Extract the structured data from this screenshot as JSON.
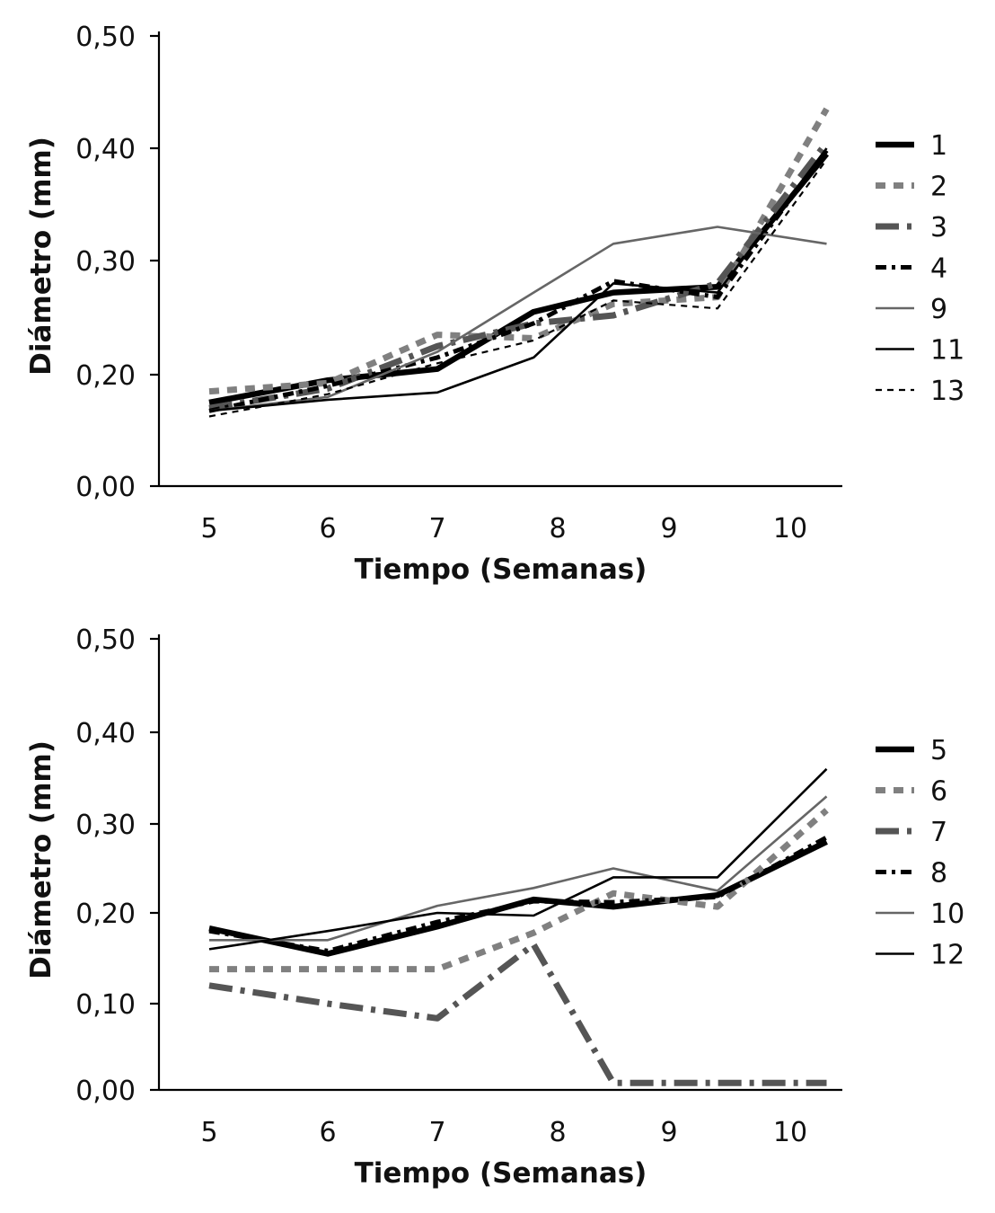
{
  "chart_data": [
    {
      "type": "line",
      "xlabel": "Tiempo (Semanas)",
      "ylabel": "Diámetro (mm)",
      "x_ticks": [
        "5",
        "6",
        "7",
        "8",
        "9",
        "10"
      ],
      "y_ticks": [
        "0,00",
        "0,20",
        "0,30",
        "0,40",
        "0,50"
      ],
      "legend_position": "right",
      "grid": false,
      "series": [
        {
          "name": "1",
          "style": "solid-thick",
          "color": "#000000",
          "x": [
            5,
            6,
            7,
            7.8,
            8.5,
            9.4,
            10.3
          ],
          "values": [
            0.15,
            0.19,
            0.205,
            0.255,
            0.272,
            0.277,
            0.395
          ]
        },
        {
          "name": "2",
          "style": "dash-thick",
          "color": "#808080",
          "x": [
            5,
            6,
            7,
            7.8,
            8.5,
            9.4,
            10.3
          ],
          "values": [
            0.17,
            0.185,
            0.235,
            0.232,
            0.262,
            0.268,
            0.435
          ]
        },
        {
          "name": "3",
          "style": "dashdot-thick",
          "color": "#555555",
          "x": [
            5,
            6,
            7,
            7.8,
            8.5,
            9.4,
            10.3
          ],
          "values": [
            0.14,
            0.175,
            0.225,
            0.245,
            0.252,
            0.28,
            0.405
          ]
        },
        {
          "name": "4",
          "style": "dashdot",
          "color": "#000000",
          "x": [
            5,
            6,
            7,
            7.8,
            8.5,
            9.4,
            10.3
          ],
          "values": [
            0.135,
            0.18,
            0.215,
            0.245,
            0.282,
            0.268,
            0.398
          ]
        },
        {
          "name": "9",
          "style": "solid-thin",
          "color": "#666666",
          "x": [
            5,
            6,
            7,
            7.8,
            8.5,
            9.4,
            10.3
          ],
          "values": [
            0.135,
            0.16,
            0.22,
            0.272,
            0.315,
            0.33,
            0.315
          ]
        },
        {
          "name": "11",
          "style": "solid-thin",
          "color": "#000000",
          "x": [
            5,
            6,
            7,
            7.8,
            8.5,
            9.4,
            10.3
          ],
          "values": [
            0.135,
            0.155,
            0.168,
            0.215,
            0.28,
            0.272,
            0.4
          ]
        },
        {
          "name": "13",
          "style": "dash-thin",
          "color": "#000000",
          "x": [
            5,
            6,
            7,
            7.8,
            8.5,
            9.4,
            10.3
          ],
          "values": [
            0.125,
            0.165,
            0.21,
            0.23,
            0.265,
            0.258,
            0.39
          ]
        }
      ]
    },
    {
      "type": "line",
      "xlabel": "Tiempo (Semanas)",
      "ylabel": "Diámetro (mm)",
      "x_ticks": [
        "5",
        "6",
        "7",
        "8",
        "9",
        "10"
      ],
      "y_ticks": [
        "0,00",
        "0,10",
        "0,20",
        "0,30",
        "0,40",
        "0,50"
      ],
      "legend_position": "right",
      "grid": false,
      "series": [
        {
          "name": "5",
          "style": "solid-thick",
          "color": "#000000",
          "x": [
            5,
            6,
            7,
            7.8,
            8.5,
            9.4,
            10.3
          ],
          "values": [
            0.183,
            0.155,
            0.185,
            0.215,
            0.207,
            0.22,
            0.28
          ]
        },
        {
          "name": "6",
          "style": "dash-thick",
          "color": "#808080",
          "x": [
            5,
            6,
            7,
            7.8,
            8.5,
            9.4,
            10.3
          ],
          "values": [
            0.138,
            0.138,
            0.138,
            0.178,
            0.222,
            0.207,
            0.315
          ]
        },
        {
          "name": "7",
          "style": "dashdot-thick",
          "color": "#555555",
          "x": [
            5,
            6,
            7,
            7.8,
            8.5,
            9.4,
            10.3
          ],
          "values": [
            0.12,
            0.1,
            0.083,
            0.165,
            0.008,
            0.008,
            0.008
          ]
        },
        {
          "name": "8",
          "style": "dashdot",
          "color": "#000000",
          "x": [
            5,
            6,
            7,
            7.8,
            8.5,
            9.4,
            10.3
          ],
          "values": [
            0.18,
            0.158,
            0.19,
            0.213,
            0.212,
            0.218,
            0.285
          ]
        },
        {
          "name": "10",
          "style": "solid-thin",
          "color": "#666666",
          "x": [
            5,
            6,
            7,
            7.8,
            8.5,
            9.4,
            10.3
          ],
          "values": [
            0.17,
            0.17,
            0.208,
            0.228,
            0.25,
            0.225,
            0.33
          ]
        },
        {
          "name": "12",
          "style": "solid-thin",
          "color": "#000000",
          "x": [
            5,
            6,
            7,
            7.8,
            8.5,
            9.4,
            10.3
          ],
          "values": [
            0.16,
            0.18,
            0.2,
            0.197,
            0.24,
            0.24,
            0.36
          ]
        }
      ]
    }
  ]
}
